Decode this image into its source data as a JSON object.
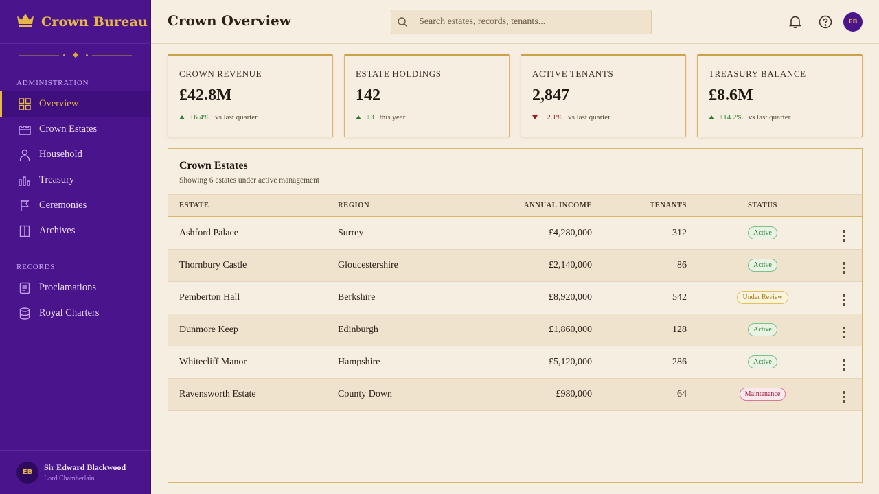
{
  "brand": {
    "name": "Crown Bureau"
  },
  "sidebar": {
    "sections": [
      {
        "label": "Administration",
        "items": [
          {
            "label": "Overview",
            "icon": "grid-icon",
            "active": true
          },
          {
            "label": "Crown Estates",
            "icon": "castle-icon"
          },
          {
            "label": "Household",
            "icon": "person-icon"
          },
          {
            "label": "Treasury",
            "icon": "bar-chart-icon"
          },
          {
            "label": "Ceremonies",
            "icon": "flag-icon"
          },
          {
            "label": "Archives",
            "icon": "book-icon"
          }
        ]
      },
      {
        "label": "Records",
        "items": [
          {
            "label": "Proclamations",
            "icon": "document-icon"
          },
          {
            "label": "Royal Charters",
            "icon": "database-icon"
          }
        ]
      }
    ],
    "user": {
      "initials": "EB",
      "name": "Sir Edward Blackwood",
      "role": "Lord Chamberlain"
    }
  },
  "header": {
    "title": "Crown Overview",
    "search_placeholder": "Search estates, records, tenants...",
    "avatar_initials": "EB"
  },
  "stats": [
    {
      "label": "Crown Revenue",
      "value": "£42.8M",
      "delta": "+6.4%",
      "direction": "up",
      "note": "vs last quarter"
    },
    {
      "label": "Estate Holdings",
      "value": "142",
      "delta": "+3",
      "direction": "up",
      "note": "this year"
    },
    {
      "label": "Active Tenants",
      "value": "2,847",
      "delta": "−2.1%",
      "direction": "down",
      "note": "vs last quarter"
    },
    {
      "label": "Treasury Balance",
      "value": "£8.6M",
      "delta": "+14.2%",
      "direction": "up",
      "note": "vs last quarter"
    }
  ],
  "estates": {
    "title": "Crown Estates",
    "subtitle": "Showing 6 estates under active management",
    "columns": [
      "Estate",
      "Region",
      "Annual Income",
      "Tenants",
      "Status"
    ],
    "rows": [
      {
        "estate": "Ashford Palace",
        "region": "Surrey",
        "income": "£4,280,000",
        "tenants": "312",
        "status": "Active",
        "status_type": "active"
      },
      {
        "estate": "Thornbury Castle",
        "region": "Gloucestershire",
        "income": "£2,140,000",
        "tenants": "86",
        "status": "Active",
        "status_type": "active"
      },
      {
        "estate": "Pemberton Hall",
        "region": "Berkshire",
        "income": "£8,920,000",
        "tenants": "542",
        "status": "Under Review",
        "status_type": "review"
      },
      {
        "estate": "Dunmore Keep",
        "region": "Edinburgh",
        "income": "£1,860,000",
        "tenants": "128",
        "status": "Active",
        "status_type": "active"
      },
      {
        "estate": "Whitecliff Manor",
        "region": "Hampshire",
        "income": "£5,120,000",
        "tenants": "286",
        "status": "Active",
        "status_type": "active"
      },
      {
        "estate": "Ravensworth Estate",
        "region": "County Down",
        "income": "£980,000",
        "tenants": "64",
        "status": "Maintenance",
        "status_type": "maint"
      }
    ]
  },
  "colors": {
    "sidebar": "#4a148c",
    "gold": "#e6b84a",
    "parchment": "#f6eee0",
    "positive": "#2e7d32",
    "negative": "#9b1c1c"
  }
}
